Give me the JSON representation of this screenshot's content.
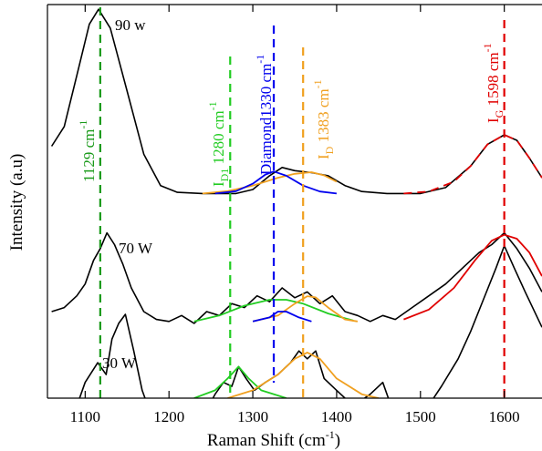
{
  "chart_data": {
    "type": "line",
    "xlabel": {
      "text": "Raman Shift (cm",
      "sup": "-1",
      "end": ")"
    },
    "ylabel": "Intensity (a.u)",
    "xlim": [
      1055,
      1645
    ],
    "ylim": [
      0,
      100
    ],
    "xticks": [
      1100,
      1200,
      1300,
      1400,
      1500,
      1600
    ],
    "series": [
      {
        "name": "90 w",
        "color": "#000000",
        "x": [
          1060,
          1075,
          1090,
          1105,
          1116,
          1130,
          1150,
          1170,
          1190,
          1210,
          1240,
          1280,
          1300,
          1320,
          1335,
          1350,
          1370,
          1390,
          1410,
          1430,
          1460,
          1500,
          1530,
          1560,
          1580,
          1600,
          1615,
          1630,
          1645
        ],
        "values": [
          64,
          69,
          82,
          95,
          98.8,
          94,
          78,
          62,
          54,
          52.3,
          52,
          52,
          53,
          56.5,
          58.6,
          57.8,
          57.3,
          56.5,
          54,
          52.5,
          52,
          52,
          53.5,
          59,
          64.5,
          66.9,
          65.5,
          61,
          56
        ]
      },
      {
        "name": "70 W",
        "color": "#000000",
        "x": [
          1060,
          1075,
          1090,
          1100,
          1110,
          1118,
          1126,
          1135,
          1145,
          1155,
          1170,
          1185,
          1200,
          1215,
          1230,
          1245,
          1260,
          1275,
          1290,
          1305,
          1320,
          1335,
          1350,
          1365,
          1380,
          1395,
          1410,
          1425,
          1440,
          1455,
          1470,
          1490,
          1510,
          1530,
          1550,
          1570,
          1585,
          1600,
          1615,
          1630,
          1645
        ],
        "values": [
          22,
          23,
          26,
          29,
          35,
          38,
          42,
          39,
          34,
          28,
          22,
          20,
          19.5,
          21,
          19,
          22,
          21,
          24,
          23,
          26,
          24.5,
          28,
          25.5,
          27,
          24,
          26,
          22,
          21,
          19.5,
          21,
          20,
          23,
          26,
          29,
          33,
          37,
          39,
          42,
          38,
          33,
          27
        ]
      },
      {
        "name": "30 W",
        "color": "#000000",
        "x": [
          1085,
          1100,
          1115,
          1125,
          1132,
          1140,
          1148,
          1158,
          1168,
          1180,
          1240,
          1255,
          1265,
          1275,
          1283,
          1292,
          1302,
          1315,
          1330,
          1345,
          1355,
          1365,
          1375,
          1385,
          1400,
          1420,
          1440,
          1455,
          1470,
          1500,
          1525,
          1545,
          1560,
          1575,
          1590,
          1600,
          1612,
          1625,
          1645
        ],
        "values": [
          -5,
          4,
          9,
          6,
          15,
          19,
          21.3,
          12,
          2,
          -5,
          -5,
          1,
          4,
          3,
          8,
          5,
          2,
          4,
          6,
          9,
          12,
          10,
          12,
          5,
          2,
          -2,
          1,
          4,
          -5,
          -5,
          3,
          10,
          17,
          25,
          33,
          38.7,
          33,
          27,
          18
        ]
      },
      {
        "color": "#f0a020",
        "x": [
          1240,
          1270,
          1300,
          1330,
          1350,
          1370,
          1385,
          1400
        ],
        "values": [
          52,
          52.6,
          54,
          56,
          57,
          57.4,
          56.6,
          55
        ]
      },
      {
        "color": "#0000ee",
        "x": [
          1255,
          1280,
          1300,
          1315,
          1325,
          1340,
          1360,
          1380,
          1400
        ],
        "values": [
          52,
          52.6,
          54.5,
          56.8,
          57.6,
          56.5,
          54,
          52.5,
          52
        ]
      },
      {
        "color": "#e00000",
        "dash": true,
        "x": [
          1480,
          1510,
          1540,
          1560,
          1580,
          1600,
          1615,
          1630,
          1645
        ],
        "values": [
          52,
          52.5,
          55,
          59,
          64.5,
          66.9,
          65.5,
          61,
          56
        ]
      },
      {
        "color": "#22cc22",
        "x": [
          1230,
          1260,
          1290,
          1320,
          1340,
          1360,
          1390,
          1420
        ],
        "values": [
          19.5,
          21,
          23.5,
          25,
          25,
          24,
          21.5,
          19.7
        ]
      },
      {
        "color": "#f0a020",
        "x": [
          1300,
          1330,
          1350,
          1365,
          1375,
          1390,
          1410,
          1425
        ],
        "values": [
          19.5,
          21,
          24,
          25.9,
          25.6,
          23,
          20,
          19.5
        ]
      },
      {
        "color": "#0000ee",
        "x": [
          1300,
          1320,
          1330,
          1340,
          1355,
          1370
        ],
        "values": [
          19.5,
          20.5,
          22,
          22,
          20.5,
          19.5
        ]
      },
      {
        "color": "#e00000",
        "x": [
          1480,
          1510,
          1540,
          1565,
          1585,
          1600,
          1615,
          1630,
          1645
        ],
        "values": [
          20,
          22.5,
          28,
          35,
          40,
          41.5,
          40.5,
          37,
          31
        ]
      },
      {
        "color": "#22cc22",
        "x": [
          1230,
          1255,
          1270,
          1283,
          1295,
          1310,
          1340
        ],
        "values": [
          0,
          2,
          5,
          8,
          5,
          2,
          0
        ]
      },
      {
        "color": "#f0a020",
        "x": [
          1270,
          1300,
          1330,
          1350,
          1365,
          1380,
          1400,
          1430,
          1450
        ],
        "values": [
          0,
          2,
          6,
          10,
          11.6,
          10,
          5,
          1,
          0
        ]
      }
    ],
    "vlines": [
      {
        "x": 1118,
        "color": "#1a9a1a"
      },
      {
        "x": 1273,
        "color": "#22cc22"
      },
      {
        "x": 1325,
        "color": "#0000ee"
      },
      {
        "x": 1360,
        "color": "#f0a020"
      },
      {
        "x": 1600,
        "color": "#e00000"
      }
    ],
    "annotations": [
      {
        "text": "1129 cm",
        "sup": "-1",
        "color": "#1a9a1a"
      },
      {
        "main": "I",
        "sub": "D1",
        "text": " 1280 cm",
        "sup": "-1",
        "color": "#22cc22"
      },
      {
        "text": "Diamond1330 cm",
        "sup": "-1",
        "color": "#0000ee"
      },
      {
        "main": "I",
        "sub": "D",
        "text": " 1383 cm",
        "sup": "-1",
        "color": "#f0a020"
      },
      {
        "main": "I",
        "sub": "G",
        "text": " 1598 cm",
        "sup": "-1",
        "color": "#e00000"
      }
    ]
  }
}
